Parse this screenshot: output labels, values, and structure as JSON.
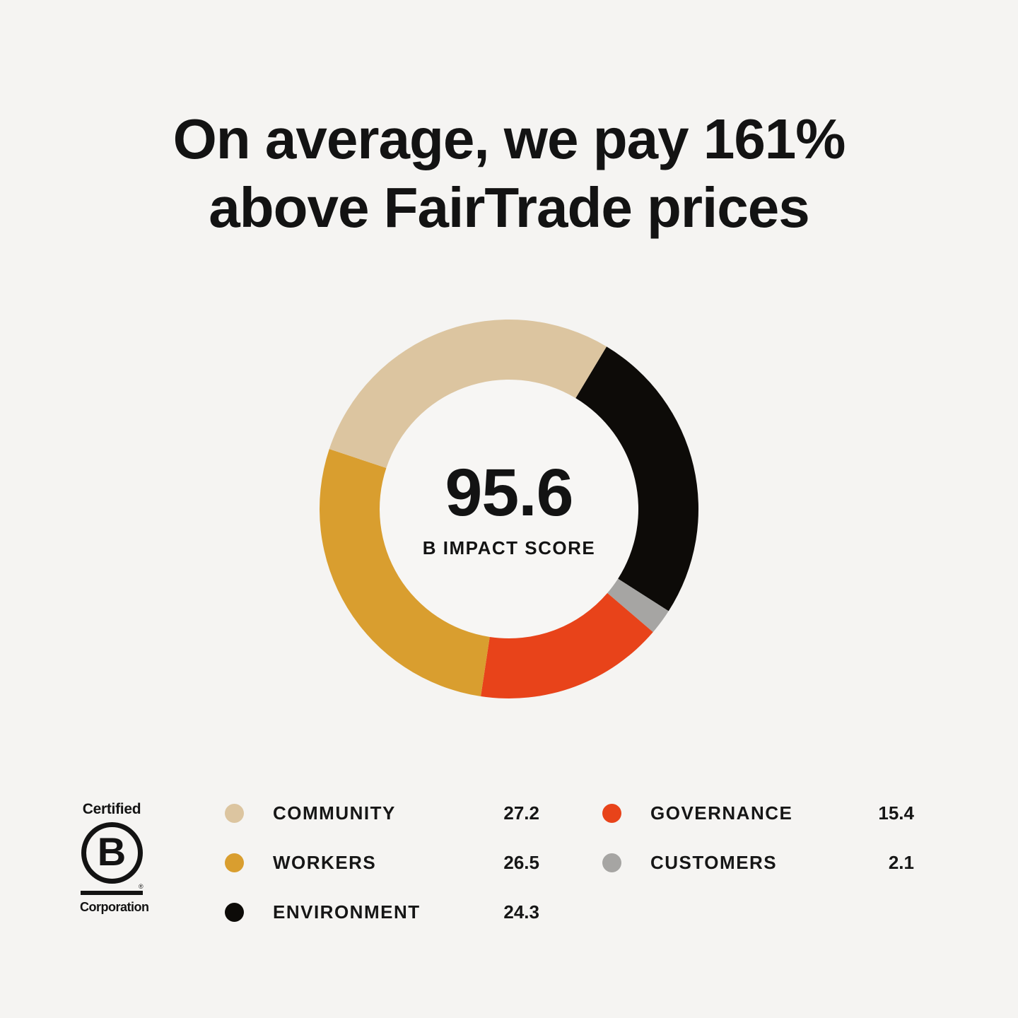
{
  "title": {
    "line1": "On average, we pay 161%",
    "line2": "above FairTrade prices"
  },
  "colors": {
    "background": "#f5f4f2",
    "donut_hole": "#f7f6f4",
    "text": "#131313"
  },
  "chart_data": {
    "type": "pie",
    "subtype": "donut",
    "center_value": "95.6",
    "center_label": "B IMPACT SCORE",
    "series": [
      {
        "name": "COMMUNITY",
        "value": 27.2,
        "color": "#dcc5a0"
      },
      {
        "name": "WORKERS",
        "value": 26.5,
        "color": "#d99e2f"
      },
      {
        "name": "ENVIRONMENT",
        "value": 24.3,
        "color": "#0d0b08"
      },
      {
        "name": "GOVERNANCE",
        "value": 15.4,
        "color": "#e8431a"
      },
      {
        "name": "CUSTOMERS",
        "value": 2.1,
        "color": "#a6a5a3"
      }
    ],
    "total": 95.5,
    "draw": {
      "order": [
        "ENVIRONMENT",
        "CUSTOMERS",
        "GOVERNANCE",
        "WORKERS",
        "COMMUNITY"
      ],
      "start_angle_deg": 31,
      "direction": "clockwise",
      "outer_radius": 268,
      "inner_radius": 183
    },
    "legend_position": "bottom",
    "legend_columns": [
      [
        "COMMUNITY",
        "WORKERS",
        "ENVIRONMENT"
      ],
      [
        "GOVERNANCE",
        "CUSTOMERS"
      ]
    ]
  },
  "bcorp_logo": {
    "top_text": "Certified",
    "letter": "B",
    "registered_mark": "®",
    "bottom_text": "Corporation"
  }
}
